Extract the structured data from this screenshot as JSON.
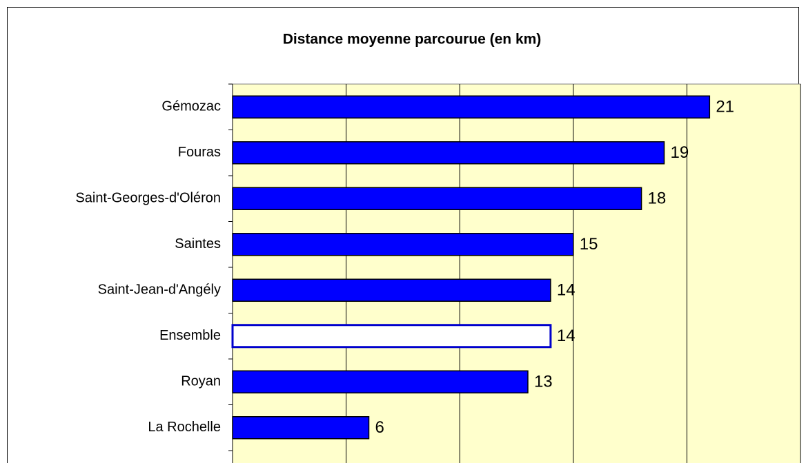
{
  "chart_data": {
    "type": "barh",
    "title": "Distance moyenne parcourue (en km)",
    "categories": [
      "Gémozac",
      "Fouras",
      "Saint-Georges-d'Oléron",
      "Saintes",
      "Saint-Jean-d'Angély",
      "Ensemble",
      "Royan",
      "La Rochelle"
    ],
    "values": [
      21,
      19,
      18,
      15,
      14,
      14,
      13,
      6
    ],
    "colors": [
      "#0000ff",
      "#0000ff",
      "#0000ff",
      "#0000ff",
      "#0000ff",
      "#ffffff",
      "#0000ff",
      "#0000ff"
    ],
    "edgecolors": [
      "#000000",
      "#000000",
      "#000000",
      "#000000",
      "#000000",
      "#0000cc",
      "#000000",
      "#000000"
    ],
    "xlim": [
      0,
      25
    ],
    "xticks": [
      0,
      5,
      10,
      15,
      20,
      25
    ],
    "grid": true,
    "background": "#ffffcc"
  }
}
